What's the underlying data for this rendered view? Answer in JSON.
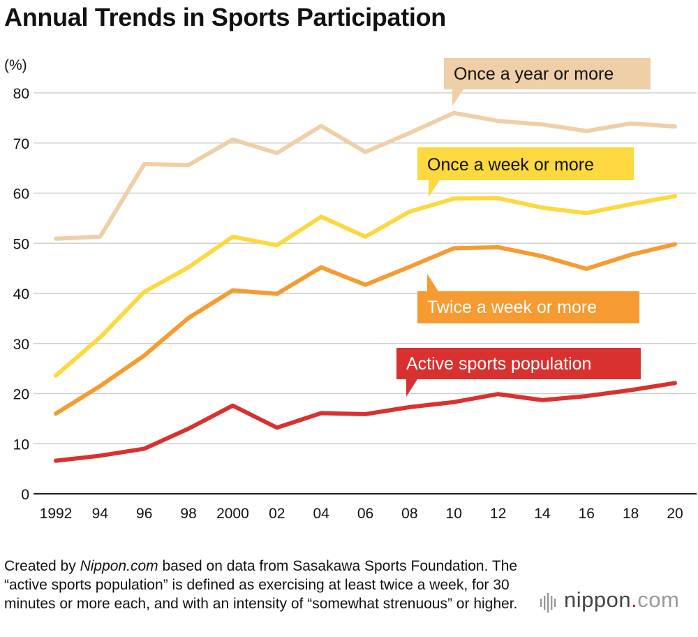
{
  "title": "Annual Trends in Sports Participation",
  "footer": {
    "prefix": "Created by ",
    "source_italic": "Nippon.com",
    "text": " based on data from Sasakawa Sports Foundation. The “active sports population” is defined as exercising at least twice a week, for 30 minutes or more each, and with an intensity of “somewhat strenuous” or higher."
  },
  "logo": {
    "name": "nippon",
    "dot": ".",
    "suffix": "com",
    "accent": "#c9272e"
  },
  "chart_data": {
    "type": "line",
    "ylabel": "(%)",
    "ylim": [
      0,
      80
    ],
    "yticks": [
      0,
      10,
      20,
      30,
      40,
      50,
      60,
      70,
      80
    ],
    "grid": true,
    "x": [
      1992,
      1994,
      1996,
      1998,
      2000,
      2002,
      2004,
      2006,
      2008,
      2010,
      2012,
      2014,
      2016,
      2018,
      2020
    ],
    "x_tick_labels": [
      "1992",
      "94",
      "96",
      "98",
      "2000",
      "02",
      "04",
      "06",
      "08",
      "10",
      "12",
      "14",
      "16",
      "18",
      "20"
    ],
    "series": [
      {
        "name": "Once a year or more",
        "color": "#efcfa8",
        "label_text_color": "#111111",
        "values": [
          50.9,
          51.3,
          65.8,
          65.6,
          70.7,
          68.0,
          73.4,
          68.2,
          72.0,
          76.0,
          74.4,
          73.7,
          72.4,
          73.9,
          73.3
        ]
      },
      {
        "name": "Once a week or more",
        "color": "#fdd83e",
        "label_text_color": "#111111",
        "values": [
          23.6,
          31.2,
          40.3,
          45.2,
          51.3,
          49.6,
          55.3,
          51.3,
          56.3,
          58.9,
          59.0,
          57.1,
          56.0,
          57.8,
          59.4
        ]
      },
      {
        "name": "Twice a week or more",
        "color": "#f59b31",
        "label_text_color": "#ffffff",
        "values": [
          16.0,
          21.5,
          27.6,
          35.1,
          40.6,
          39.9,
          45.2,
          41.7,
          45.3,
          49.0,
          49.2,
          47.4,
          44.9,
          47.7,
          49.8
        ]
      },
      {
        "name": "Active sports population",
        "color": "#d9312f",
        "label_text_color": "#ffffff",
        "values": [
          6.6,
          7.6,
          9.0,
          13.0,
          17.6,
          13.2,
          16.1,
          15.9,
          17.3,
          18.3,
          19.9,
          18.7,
          19.5,
          20.7,
          22.1
        ]
      }
    ]
  }
}
